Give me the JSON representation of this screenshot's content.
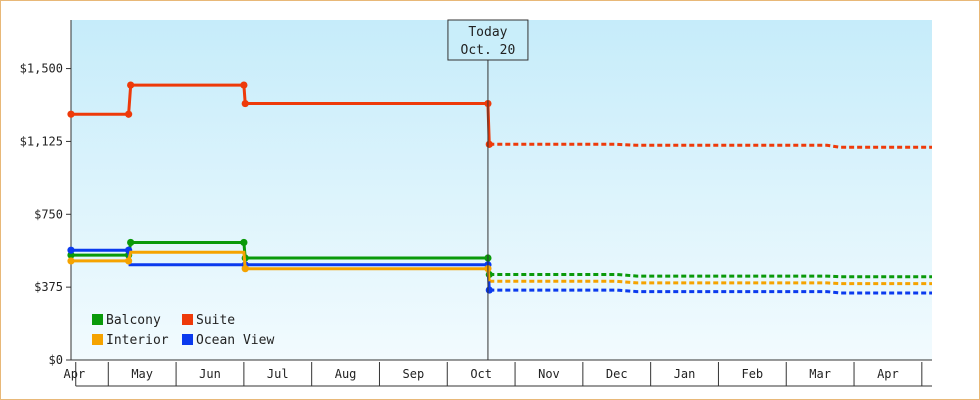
{
  "chart_data": {
    "type": "line",
    "step": true,
    "ylim": [
      0,
      1750
    ],
    "yticks": [
      {
        "value": 0,
        "label": "$0"
      },
      {
        "value": 375,
        "label": "$375"
      },
      {
        "value": 750,
        "label": "$750"
      },
      {
        "value": 1125,
        "label": "$1,125"
      },
      {
        "value": 1500,
        "label": "$1,500"
      }
    ],
    "months": [
      "Apr",
      "May",
      "Jun",
      "Jul",
      "Aug",
      "Sep",
      "Oct",
      "Nov",
      "Dec",
      "Jan",
      "Feb",
      "Mar",
      "Apr"
    ],
    "xlim": [
      -0.05,
      12.65
    ],
    "today": {
      "line1": "Today",
      "line2": "Oct. 20",
      "x": 6.1
    },
    "legend": [
      {
        "name": "Balcony",
        "color": "#0a9a0a"
      },
      {
        "name": "Suite",
        "color": "#ee3a0a"
      },
      {
        "name": "Interior",
        "color": "#f5a300"
      },
      {
        "name": "Ocean View",
        "color": "#0a3aee"
      }
    ],
    "series": [
      {
        "name": "Suite",
        "color": "#ee3a0a",
        "historical": [
          [
            -0.05,
            1265
          ],
          [
            0.8,
            1265
          ],
          [
            0.83,
            1415
          ],
          [
            2.5,
            1415
          ],
          [
            2.52,
            1320
          ],
          [
            6.1,
            1320
          ],
          [
            6.12,
            1110
          ]
        ],
        "forecast": [
          [
            6.12,
            1110
          ],
          [
            8.0,
            1110
          ],
          [
            8.3,
            1105
          ],
          [
            11.1,
            1105
          ],
          [
            11.3,
            1095
          ],
          [
            12.65,
            1095
          ]
        ]
      },
      {
        "name": "Balcony",
        "color": "#0a9a0a",
        "historical": [
          [
            -0.05,
            540
          ],
          [
            0.8,
            540
          ],
          [
            0.83,
            605
          ],
          [
            2.5,
            605
          ],
          [
            2.52,
            525
          ],
          [
            6.1,
            525
          ],
          [
            6.12,
            440
          ]
        ],
        "forecast": [
          [
            6.12,
            440
          ],
          [
            8.0,
            440
          ],
          [
            8.3,
            432
          ],
          [
            11.1,
            432
          ],
          [
            11.3,
            428
          ],
          [
            12.65,
            428
          ]
        ]
      },
      {
        "name": "Ocean View",
        "color": "#0a3aee",
        "historical": [
          [
            -0.05,
            565
          ],
          [
            0.8,
            565
          ],
          [
            0.82,
            490
          ],
          [
            6.1,
            490
          ],
          [
            6.12,
            360
          ]
        ],
        "forecast": [
          [
            6.12,
            360
          ],
          [
            8.0,
            360
          ],
          [
            8.3,
            352
          ],
          [
            11.1,
            352
          ],
          [
            11.3,
            345
          ],
          [
            12.65,
            345
          ]
        ]
      },
      {
        "name": "Interior",
        "color": "#f5a300",
        "historical": [
          [
            -0.05,
            510
          ],
          [
            0.8,
            510
          ],
          [
            0.83,
            555
          ],
          [
            2.5,
            555
          ],
          [
            2.52,
            470
          ],
          [
            6.1,
            470
          ],
          [
            6.12,
            405
          ]
        ],
        "forecast": [
          [
            6.12,
            405
          ],
          [
            8.0,
            405
          ],
          [
            8.3,
            397
          ],
          [
            11.1,
            397
          ],
          [
            11.3,
            393
          ],
          [
            12.65,
            393
          ]
        ]
      }
    ],
    "markers": {
      "Suite": [
        [
          -0.05,
          1265
        ],
        [
          0.8,
          1265
        ],
        [
          0.83,
          1415
        ],
        [
          2.5,
          1415
        ],
        [
          2.52,
          1320
        ],
        [
          6.1,
          1320
        ],
        [
          6.12,
          1110
        ]
      ],
      "Balcony": [
        [
          -0.05,
          540
        ],
        [
          0.8,
          540
        ],
        [
          0.83,
          605
        ],
        [
          2.5,
          605
        ],
        [
          2.52,
          525
        ],
        [
          6.1,
          525
        ],
        [
          6.12,
          440
        ]
      ],
      "Ocean View": [
        [
          -0.05,
          565
        ],
        [
          0.8,
          565
        ],
        [
          2.52,
          490
        ],
        [
          6.1,
          490
        ],
        [
          6.12,
          360
        ]
      ],
      "Interior": [
        [
          -0.05,
          510
        ],
        [
          0.8,
          510
        ],
        [
          2.52,
          470
        ],
        [
          6.1,
          470
        ]
      ]
    }
  }
}
